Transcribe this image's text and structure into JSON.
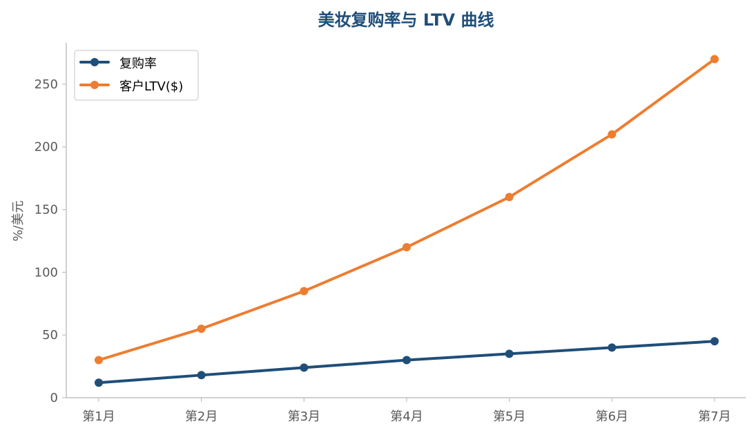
{
  "chart_data": {
    "type": "line",
    "title": "美妆复购率与 LTV 曲线",
    "xlabel": "",
    "ylabel": "%/美元",
    "categories": [
      "第1月",
      "第2月",
      "第3月",
      "第4月",
      "第5月",
      "第6月",
      "第7月"
    ],
    "ylim": [
      0,
      283
    ],
    "yticks": [
      0,
      50,
      100,
      150,
      200,
      250
    ],
    "grid": false,
    "legend_position": "top-left",
    "series": [
      {
        "name": "复购率",
        "color": "#1f4e79",
        "values": [
          12,
          18,
          24,
          30,
          35,
          40,
          45
        ]
      },
      {
        "name": "客户LTV($)",
        "color": "#ed7d31",
        "values": [
          30,
          55,
          85,
          120,
          160,
          210,
          270
        ]
      }
    ],
    "colors": {
      "title": "#1f4e79",
      "axis": "#bfbfbf",
      "tick_text": "#595959",
      "legend_border": "#d9d9d9"
    }
  }
}
